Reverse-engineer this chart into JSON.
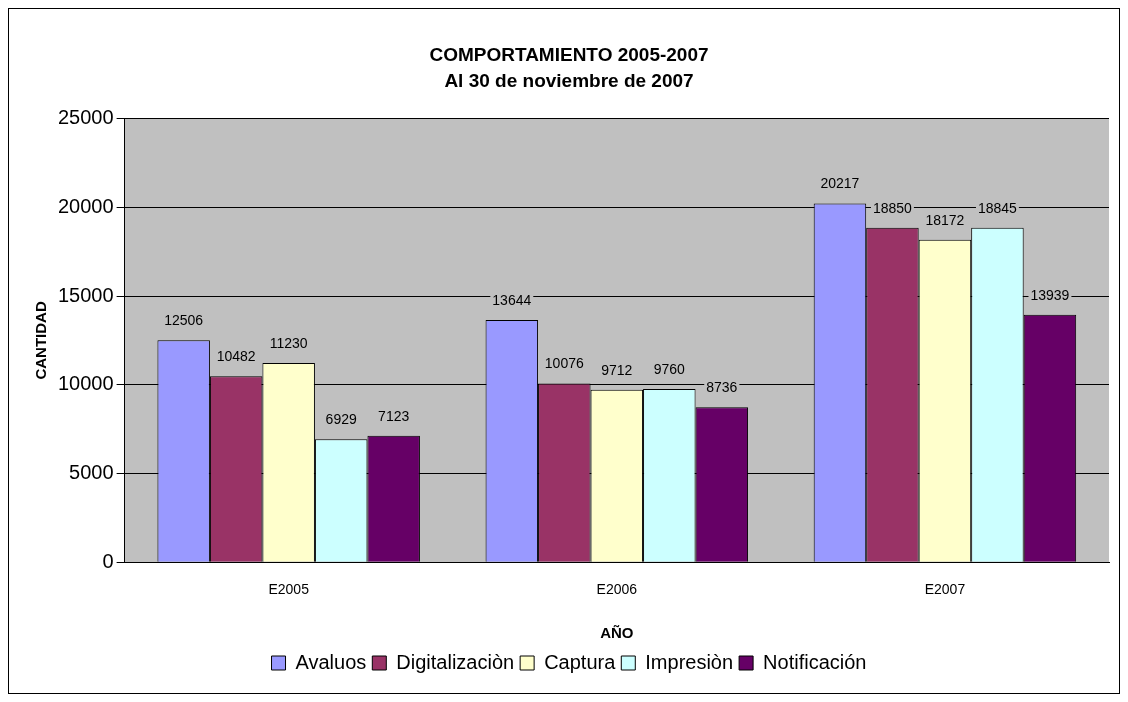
{
  "chart_data": {
    "type": "bar",
    "title": "COMPORTAMIENTO 2005-2007",
    "subtitle": "Al 30 de noviembre de 2007",
    "xlabel": "AÑO",
    "ylabel": "CANTIDAD",
    "categories": [
      "E2005",
      "E2006",
      "E2007"
    ],
    "series": [
      {
        "name": "Avaluos",
        "color": "#9999ff",
        "values": [
          12506,
          13644,
          20217
        ]
      },
      {
        "name": "Digitalizaciòn",
        "color": "#993366",
        "values": [
          10482,
          10076,
          18850
        ]
      },
      {
        "name": "Captura",
        "color": "#ffffcc",
        "values": [
          11230,
          9712,
          18172
        ]
      },
      {
        "name": "Impresiòn",
        "color": "#ccffff",
        "values": [
          6929,
          9760,
          18845
        ]
      },
      {
        "name": "Notificación",
        "color": "#660066",
        "values": [
          7123,
          8736,
          13939
        ]
      }
    ],
    "ylim": [
      0,
      25000
    ],
    "yticks": [
      0,
      5000,
      10000,
      15000,
      20000,
      25000
    ],
    "grid": "y",
    "legend": "bottom",
    "data_labels": true
  }
}
